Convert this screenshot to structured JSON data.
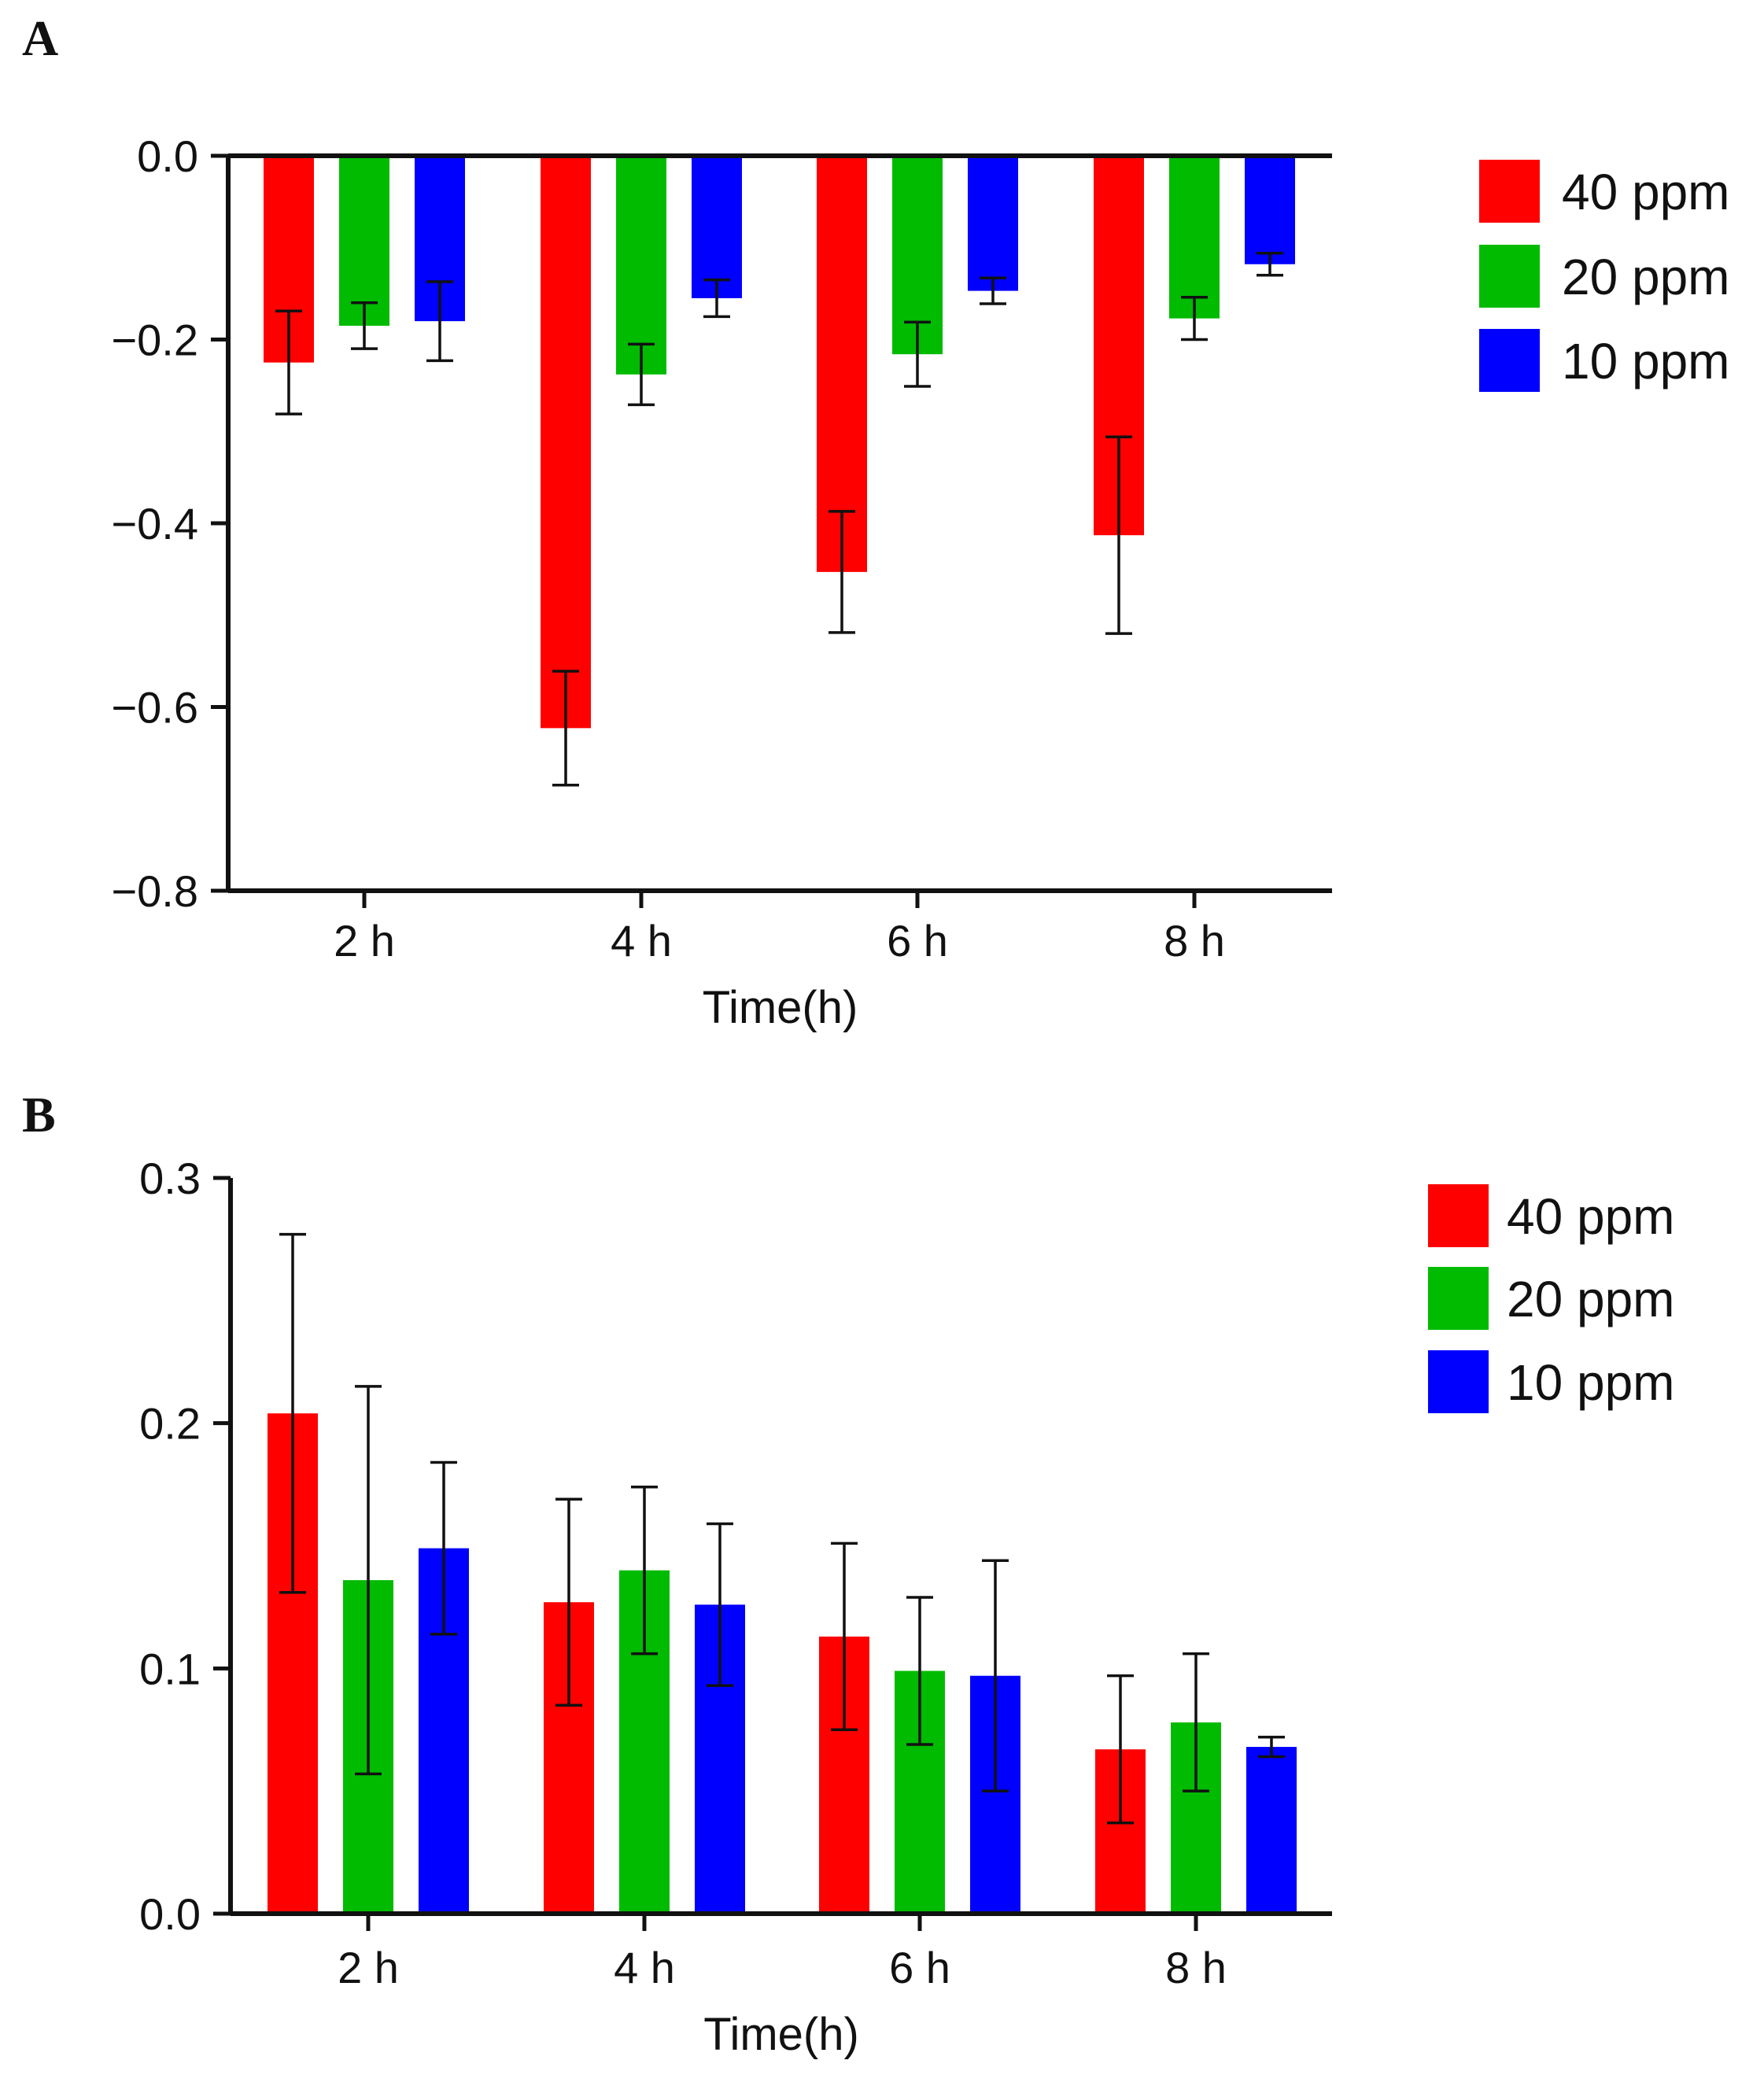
{
  "figure": {
    "panels": [
      "A",
      "B"
    ]
  },
  "chart_data": [
    {
      "panel": "A",
      "type": "bar",
      "title": "",
      "xlabel": "Time(h)",
      "ylabel": "",
      "categories": [
        "2 h",
        "4 h",
        "6 h",
        "8 h"
      ],
      "ylim": [
        -0.8,
        0.0
      ],
      "yticks": [
        0.0,
        -0.2,
        -0.4,
        -0.6,
        -0.8
      ],
      "ytick_labels": [
        "0.0",
        "−0.2",
        "−0.4",
        "−0.6",
        "−0.8"
      ],
      "legend_position": "right",
      "series": [
        {
          "name": "40 ppm",
          "color": "#ff0000",
          "values": [
            -0.225,
            -0.623,
            -0.453,
            -0.413
          ],
          "errors": [
            0.056,
            0.062,
            0.066,
            0.107
          ]
        },
        {
          "name": "20 ppm",
          "color": "#00bb00",
          "values": [
            -0.185,
            -0.238,
            -0.216,
            -0.177
          ],
          "errors": [
            0.025,
            0.033,
            0.035,
            0.023
          ]
        },
        {
          "name": "10 ppm",
          "color": "#0000ff",
          "values": [
            -0.18,
            -0.155,
            -0.147,
            -0.118
          ],
          "errors": [
            0.043,
            0.02,
            0.014,
            0.012
          ]
        }
      ]
    },
    {
      "panel": "B",
      "type": "bar",
      "title": "",
      "xlabel": "Time(h)",
      "ylabel": "",
      "categories": [
        "2 h",
        "4 h",
        "6 h",
        "8 h"
      ],
      "ylim": [
        0.0,
        0.3
      ],
      "yticks": [
        0.0,
        0.1,
        0.2,
        0.3
      ],
      "ytick_labels": [
        "0.0",
        "0.1",
        "0.2",
        "0.3"
      ],
      "legend_position": "right",
      "series": [
        {
          "name": "40 ppm",
          "color": "#ff0000",
          "values": [
            0.204,
            0.127,
            0.113,
            0.067
          ],
          "errors": [
            0.073,
            0.042,
            0.038,
            0.03
          ]
        },
        {
          "name": "20 ppm",
          "color": "#00bb00",
          "values": [
            0.136,
            0.14,
            0.099,
            0.078
          ],
          "errors": [
            0.079,
            0.034,
            0.03,
            0.028
          ]
        },
        {
          "name": "10 ppm",
          "color": "#0000ff",
          "values": [
            0.149,
            0.126,
            0.097,
            0.068
          ],
          "errors": [
            0.035,
            0.033,
            0.047,
            0.004
          ]
        }
      ]
    }
  ]
}
